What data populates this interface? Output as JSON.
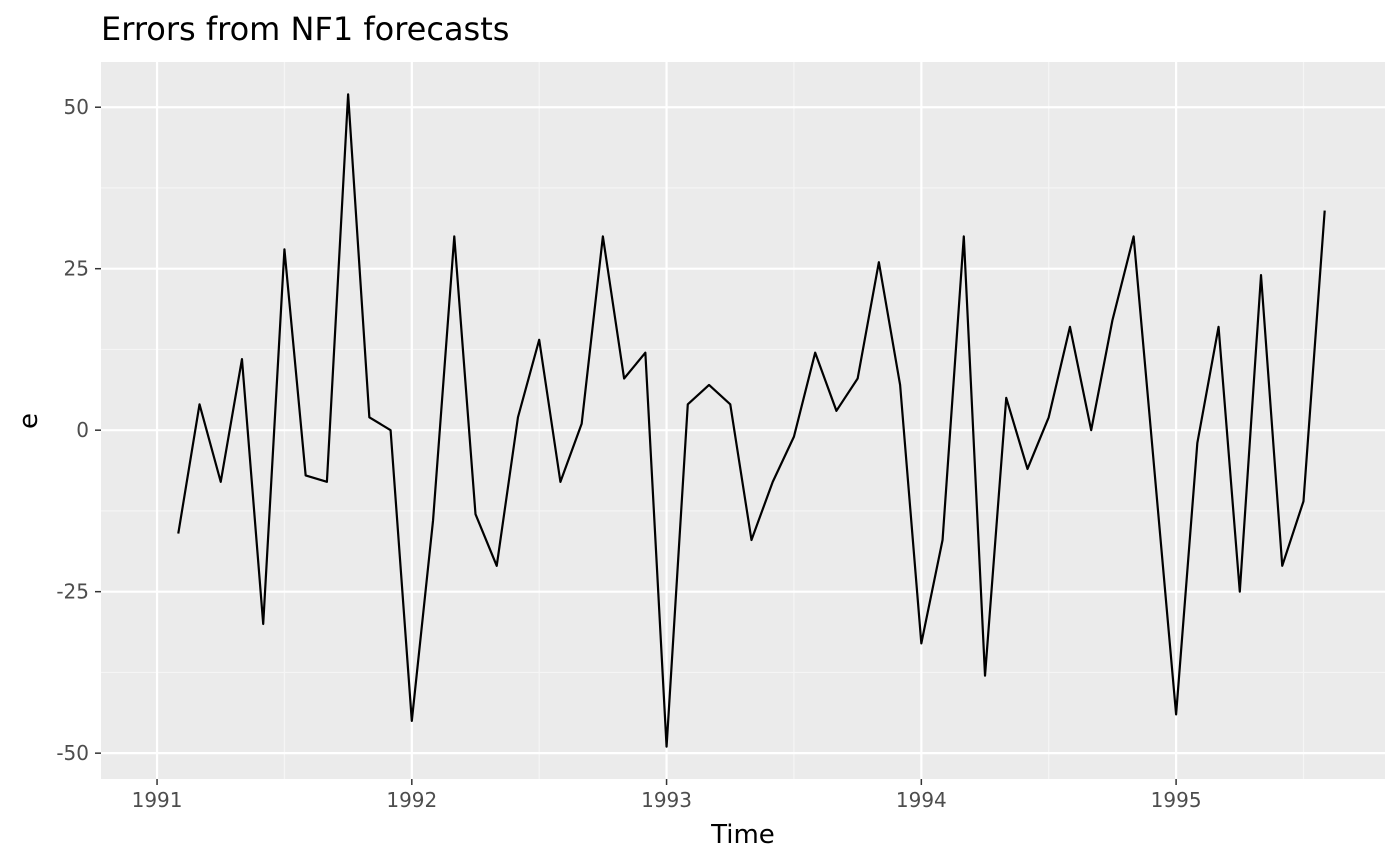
{
  "chart_data": {
    "type": "line",
    "title": "Errors from NF1 forecasts",
    "xlabel": "Time",
    "ylabel": "e",
    "xlim": [
      1990.78,
      1995.82
    ],
    "ylim": [
      -54,
      57
    ],
    "x_ticks": [
      1991,
      1992,
      1993,
      1994,
      1995
    ],
    "x_tick_labels": [
      "1991",
      "1992",
      "1993",
      "1994",
      "1995"
    ],
    "y_ticks": [
      -50,
      -25,
      0,
      25,
      50
    ],
    "y_tick_labels": [
      "-50",
      "-25",
      "0",
      "25",
      "50"
    ],
    "grid": true,
    "legend": "none",
    "colors": {
      "panel_background": "#ebebeb",
      "grid_major": "#ffffff",
      "grid_minor": "#f5f5f5",
      "line": "#000000",
      "tick_label": "#4d4d4d",
      "tick_mark": "#333333"
    },
    "series": [
      {
        "x": [
          1991.0833,
          1991.1667,
          1991.25,
          1991.3333,
          1991.4167,
          1991.5,
          1991.5833,
          1991.6667,
          1991.75,
          1991.8333,
          1991.9167,
          1992.0,
          1992.0833,
          1992.1667,
          1992.25,
          1992.3333,
          1992.4167,
          1992.5,
          1992.5833,
          1992.6667,
          1992.75,
          1992.8333,
          1992.9167,
          1993.0,
          1993.0833,
          1993.1667,
          1993.25,
          1993.3333,
          1993.4167,
          1993.5,
          1993.5833,
          1993.6667,
          1993.75,
          1993.8333,
          1993.9167,
          1994.0,
          1994.0833,
          1994.1667,
          1994.25,
          1994.3333,
          1994.4167,
          1994.5,
          1994.5833,
          1994.6667,
          1994.75,
          1994.8333,
          1994.9167,
          1995.0,
          1995.0833,
          1995.1667,
          1995.25,
          1995.3333,
          1995.4167,
          1995.5,
          1995.5833
        ],
        "values": [
          -16,
          4,
          -8,
          11,
          -30,
          28,
          -7,
          -8,
          52,
          2,
          0,
          -45,
          -14,
          30,
          -13,
          -21,
          2,
          14,
          -8,
          1,
          30,
          8,
          12,
          -49,
          4,
          7,
          4,
          -17,
          -8,
          -1,
          12,
          3,
          8,
          26,
          7,
          -33,
          -17,
          30,
          -38,
          5,
          -6,
          2,
          16,
          0,
          17,
          30,
          -7,
          -44,
          -2,
          16,
          -25,
          24,
          -21,
          -11,
          34
        ]
      }
    ]
  }
}
